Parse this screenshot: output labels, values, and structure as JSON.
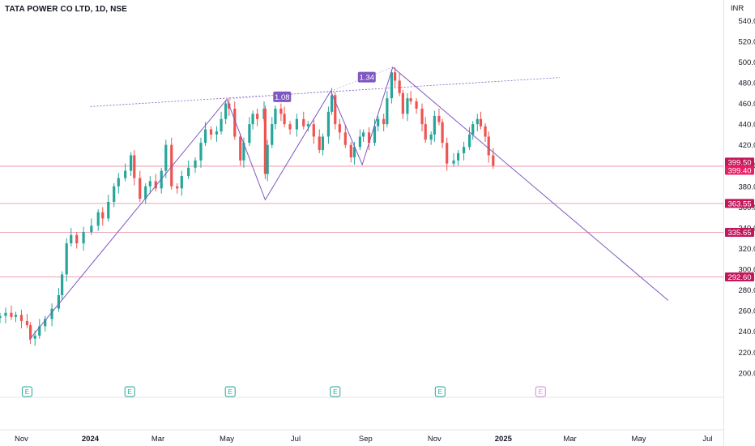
{
  "header": {
    "symbol_title": "TATA POWER CO LTD, 1D, NSE"
  },
  "currency": "INR",
  "colors": {
    "up": "#26a69a",
    "down": "#ef5350",
    "pattern": "#7e57c2",
    "level_line": "#f0a3b2",
    "level_label": "#c2185b",
    "label_last": "#e91e63",
    "earnings": "#26a69a",
    "earnings_future": "#d18ae0",
    "ratio_box": "#7e57c2"
  },
  "chart_data": {
    "type": "candlestick",
    "title": "TATA POWER CO LTD, 1D, NSE",
    "y_axis": {
      "ticks": [
        200,
        220,
        240,
        260,
        280,
        300,
        320,
        340,
        360,
        380,
        400,
        420,
        440,
        460,
        480,
        500,
        520,
        540
      ],
      "tick_labels": [
        "200.00",
        "220.00",
        "240.00",
        "260.00",
        "280.00",
        "300.00",
        "320.00",
        "340.00",
        "360.00",
        "380.00",
        "400.00",
        "420.00",
        "440.00",
        "460.00",
        "480.00",
        "500.00",
        "520.00",
        "540.00"
      ],
      "range": [
        185,
        552
      ]
    },
    "x_axis": {
      "labels": [
        {
          "date": "2023-11-01",
          "label": "Nov"
        },
        {
          "date": "2024-01-01",
          "label": "2024"
        },
        {
          "date": "2024-03-01",
          "label": "Mar"
        },
        {
          "date": "2024-05-01",
          "label": "May"
        },
        {
          "date": "2024-07-01",
          "label": "Jul"
        },
        {
          "date": "2024-09-01",
          "label": "Sep"
        },
        {
          "date": "2024-11-01",
          "label": "Nov"
        },
        {
          "date": "2025-01-01",
          "label": "2025"
        },
        {
          "date": "2025-03-01",
          "label": "Mar"
        },
        {
          "date": "2025-05-01",
          "label": "May"
        },
        {
          "date": "2025-07-01",
          "label": "Jul"
        }
      ],
      "range": [
        "2023-10-13",
        "2025-07-15"
      ]
    },
    "candles": [
      {
        "d": "2023-10-13",
        "c": 255
      },
      {
        "d": "2023-10-18",
        "c": 258
      },
      {
        "d": "2023-10-23",
        "c": 254
      },
      {
        "d": "2023-10-27",
        "c": 256
      },
      {
        "d": "2023-11-01",
        "c": 250
      },
      {
        "d": "2023-11-06",
        "c": 246
      },
      {
        "d": "2023-11-09",
        "c": 233
      },
      {
        "d": "2023-11-13",
        "c": 236
      },
      {
        "d": "2023-11-17",
        "c": 245
      },
      {
        "d": "2023-11-22",
        "c": 252
      },
      {
        "d": "2023-11-28",
        "c": 262
      },
      {
        "d": "2023-12-04",
        "c": 275
      },
      {
        "d": "2023-12-07",
        "c": 295
      },
      {
        "d": "2023-12-11",
        "c": 325
      },
      {
        "d": "2023-12-15",
        "c": 333
      },
      {
        "d": "2023-12-20",
        "c": 325
      },
      {
        "d": "2023-12-26",
        "c": 336
      },
      {
        "d": "2024-01-02",
        "c": 342
      },
      {
        "d": "2024-01-08",
        "c": 355
      },
      {
        "d": "2024-01-12",
        "c": 349
      },
      {
        "d": "2024-01-17",
        "c": 365
      },
      {
        "d": "2024-01-22",
        "c": 380
      },
      {
        "d": "2024-01-26",
        "c": 388
      },
      {
        "d": "2024-02-01",
        "c": 395
      },
      {
        "d": "2024-02-06",
        "c": 410
      },
      {
        "d": "2024-02-09",
        "c": 388
      },
      {
        "d": "2024-02-14",
        "c": 368
      },
      {
        "d": "2024-02-19",
        "c": 380
      },
      {
        "d": "2024-02-23",
        "c": 385
      },
      {
        "d": "2024-02-28",
        "c": 378
      },
      {
        "d": "2024-03-04",
        "c": 395
      },
      {
        "d": "2024-03-08",
        "c": 420
      },
      {
        "d": "2024-03-13",
        "c": 380
      },
      {
        "d": "2024-03-18",
        "c": 378
      },
      {
        "d": "2024-03-22",
        "c": 390
      },
      {
        "d": "2024-03-28",
        "c": 398
      },
      {
        "d": "2024-04-03",
        "c": 405
      },
      {
        "d": "2024-04-08",
        "c": 422
      },
      {
        "d": "2024-04-12",
        "c": 435
      },
      {
        "d": "2024-04-17",
        "c": 430
      },
      {
        "d": "2024-04-22",
        "c": 433
      },
      {
        "d": "2024-04-26",
        "c": 445
      },
      {
        "d": "2024-04-30",
        "c": 460
      },
      {
        "d": "2024-05-03",
        "c": 455
      },
      {
        "d": "2024-05-08",
        "c": 428
      },
      {
        "d": "2024-05-13",
        "c": 405
      },
      {
        "d": "2024-05-16",
        "c": 422
      },
      {
        "d": "2024-05-21",
        "c": 440
      },
      {
        "d": "2024-05-24",
        "c": 450
      },
      {
        "d": "2024-05-28",
        "c": 445
      },
      {
        "d": "2024-06-03",
        "c": 455
      },
      {
        "d": "2024-06-04",
        "c": 392
      },
      {
        "d": "2024-06-06",
        "c": 420
      },
      {
        "d": "2024-06-10",
        "c": 440
      },
      {
        "d": "2024-06-13",
        "c": 455
      },
      {
        "d": "2024-06-18",
        "c": 450
      },
      {
        "d": "2024-06-21",
        "c": 440
      },
      {
        "d": "2024-06-26",
        "c": 435
      },
      {
        "d": "2024-07-02",
        "c": 445
      },
      {
        "d": "2024-07-08",
        "c": 438
      },
      {
        "d": "2024-07-12",
        "c": 440
      },
      {
        "d": "2024-07-17",
        "c": 428
      },
      {
        "d": "2024-07-22",
        "c": 415
      },
      {
        "d": "2024-07-25",
        "c": 428
      },
      {
        "d": "2024-07-30",
        "c": 452
      },
      {
        "d": "2024-08-02",
        "c": 468
      },
      {
        "d": "2024-08-05",
        "c": 440
      },
      {
        "d": "2024-08-09",
        "c": 432
      },
      {
        "d": "2024-08-14",
        "c": 420
      },
      {
        "d": "2024-08-19",
        "c": 408
      },
      {
        "d": "2024-08-22",
        "c": 418
      },
      {
        "d": "2024-08-27",
        "c": 428
      },
      {
        "d": "2024-08-30",
        "c": 432
      },
      {
        "d": "2024-09-04",
        "c": 422
      },
      {
        "d": "2024-09-09",
        "c": 438
      },
      {
        "d": "2024-09-12",
        "c": 445
      },
      {
        "d": "2024-09-17",
        "c": 440
      },
      {
        "d": "2024-09-20",
        "c": 465
      },
      {
        "d": "2024-09-24",
        "c": 490
      },
      {
        "d": "2024-09-27",
        "c": 482
      },
      {
        "d": "2024-10-01",
        "c": 470
      },
      {
        "d": "2024-10-04",
        "c": 450
      },
      {
        "d": "2024-10-08",
        "c": 465
      },
      {
        "d": "2024-10-11",
        "c": 462
      },
      {
        "d": "2024-10-16",
        "c": 455
      },
      {
        "d": "2024-10-21",
        "c": 440
      },
      {
        "d": "2024-10-24",
        "c": 425
      },
      {
        "d": "2024-10-29",
        "c": 430
      },
      {
        "d": "2024-11-01",
        "c": 448
      },
      {
        "d": "2024-11-05",
        "c": 442
      },
      {
        "d": "2024-11-08",
        "c": 422
      },
      {
        "d": "2024-11-12",
        "c": 402
      },
      {
        "d": "2024-11-18",
        "c": 405
      },
      {
        "d": "2024-11-22",
        "c": 412
      },
      {
        "d": "2024-11-27",
        "c": 418
      },
      {
        "d": "2024-12-02",
        "c": 430
      },
      {
        "d": "2024-12-05",
        "c": 440
      },
      {
        "d": "2024-12-09",
        "c": 445
      },
      {
        "d": "2024-12-12",
        "c": 438
      },
      {
        "d": "2024-12-16",
        "c": 428
      },
      {
        "d": "2024-12-19",
        "c": 410
      },
      {
        "d": "2024-12-23",
        "c": 400
      }
    ],
    "levels": [
      {
        "value": 399.5,
        "label": "399.50"
      },
      {
        "value": 399.4,
        "label": "399.40"
      },
      {
        "value": 363.55,
        "label": "363.55"
      },
      {
        "value": 335.65,
        "label": "335.65"
      },
      {
        "value": 292.6,
        "label": "292.60"
      }
    ],
    "pattern": {
      "trend_line": [
        [
          "2023-11-08",
          232
        ],
        [
          "2024-05-01",
          464
        ]
      ],
      "zigzag": [
        [
          "2024-05-01",
          464
        ],
        [
          "2024-06-04",
          367
        ],
        [
          "2024-08-01",
          472
        ],
        [
          "2024-08-29",
          401
        ],
        [
          "2024-09-25",
          495
        ],
        [
          "2025-05-27",
          270
        ]
      ],
      "neckline": [
        [
          "2024-01-01",
          457
        ],
        [
          "2025-02-20",
          485
        ]
      ],
      "ratios": [
        {
          "label": "1.08",
          "d": "2024-06-19",
          "y": 466
        },
        {
          "label": "1.34",
          "d": "2024-09-02",
          "y": 485
        }
      ]
    },
    "earnings": [
      {
        "d": "2023-11-06",
        "future": false,
        "label": "E"
      },
      {
        "d": "2024-02-05",
        "future": false,
        "label": "E"
      },
      {
        "d": "2024-05-04",
        "future": false,
        "label": "E"
      },
      {
        "d": "2024-08-05",
        "future": false,
        "label": "E"
      },
      {
        "d": "2024-11-06",
        "future": false,
        "label": "E"
      },
      {
        "d": "2025-02-03",
        "future": true,
        "label": "E"
      }
    ]
  }
}
